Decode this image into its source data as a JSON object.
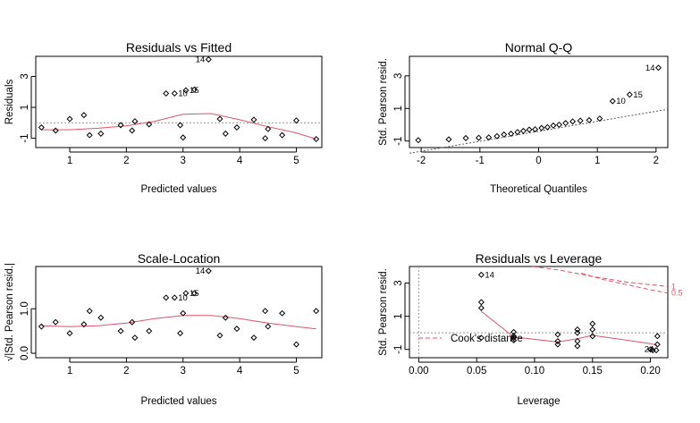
{
  "chart_data": [
    {
      "type": "scatter",
      "title": "Residuals vs Fitted",
      "xlabel": "Predicted values",
      "ylabel": "Residuals",
      "xlim": [
        0.4,
        5.45
      ],
      "ylim": [
        -1.6,
        4.3
      ],
      "xticks": [
        1,
        2,
        3,
        4,
        5
      ],
      "yticks": [
        -1,
        1,
        3
      ],
      "ref": {
        "type": "h",
        "value": 0,
        "style": "dotted",
        "color": "#999999"
      },
      "points": [
        [
          0.5,
          -0.3
        ],
        [
          0.75,
          -0.5
        ],
        [
          1.0,
          0.25
        ],
        [
          1.25,
          0.5
        ],
        [
          1.35,
          -0.8
        ],
        [
          1.55,
          -0.7
        ],
        [
          1.9,
          -0.15
        ],
        [
          2.1,
          -0.5
        ],
        [
          2.15,
          0.1
        ],
        [
          2.4,
          -0.1
        ],
        [
          2.7,
          1.9
        ],
        [
          2.85,
          1.9
        ],
        [
          2.95,
          -0.15
        ],
        [
          3.0,
          -0.95
        ],
        [
          3.05,
          2.1
        ],
        [
          3.2,
          2.15
        ],
        [
          3.45,
          4.1
        ],
        [
          3.65,
          0.25
        ],
        [
          3.75,
          -0.7
        ],
        [
          3.95,
          -0.3
        ],
        [
          4.25,
          0.2
        ],
        [
          4.45,
          -1.0
        ],
        [
          4.5,
          -0.4
        ],
        [
          4.75,
          -0.8
        ],
        [
          5.0,
          0.15
        ],
        [
          5.35,
          -1.05
        ]
      ],
      "smooth": [
        [
          0.5,
          -0.45
        ],
        [
          1.0,
          -0.45
        ],
        [
          1.5,
          -0.35
        ],
        [
          2.0,
          -0.2
        ],
        [
          2.5,
          0.1
        ],
        [
          3.0,
          0.55
        ],
        [
          3.5,
          0.6
        ],
        [
          4.0,
          0.2
        ],
        [
          4.5,
          -0.25
        ],
        [
          5.0,
          -0.65
        ],
        [
          5.35,
          -1.05
        ]
      ],
      "annotations": [
        {
          "x": 3.45,
          "y": 4.1,
          "text": "14",
          "pos": "left"
        },
        {
          "x": 2.85,
          "y": 1.9,
          "text": "10",
          "pos": "right"
        },
        {
          "x": 3.05,
          "y": 2.1,
          "text": "15",
          "pos": "right"
        }
      ]
    },
    {
      "type": "scatter",
      "title": "Normal Q-Q",
      "xlabel": "Theoretical Quantiles",
      "ylabel": "Std. Pearson resid.",
      "xlim": [
        -2.2,
        2.2
      ],
      "ylim": [
        -1.4,
        4.2
      ],
      "xticks": [
        -2,
        -1,
        0,
        1,
        2
      ],
      "yticks": [
        -1,
        1,
        3
      ],
      "ref": {
        "type": "line",
        "x1": -2.2,
        "y1": -1.75,
        "x2": 2.2,
        "y2": 0.95,
        "style": "dotted",
        "color": "#555555"
      },
      "points": [
        [
          -2.05,
          -0.95
        ],
        [
          -1.53,
          -0.9
        ],
        [
          -1.24,
          -0.82
        ],
        [
          -1.02,
          -0.8
        ],
        [
          -0.85,
          -0.78
        ],
        [
          -0.71,
          -0.7
        ],
        [
          -0.59,
          -0.6
        ],
        [
          -0.47,
          -0.55
        ],
        [
          -0.36,
          -0.45
        ],
        [
          -0.26,
          -0.38
        ],
        [
          -0.16,
          -0.3
        ],
        [
          -0.06,
          -0.28
        ],
        [
          0.05,
          -0.2
        ],
        [
          0.15,
          -0.15
        ],
        [
          0.25,
          -0.05
        ],
        [
          0.35,
          0.0
        ],
        [
          0.46,
          0.1
        ],
        [
          0.58,
          0.2
        ],
        [
          0.71,
          0.25
        ],
        [
          0.86,
          0.28
        ],
        [
          1.04,
          0.38
        ],
        [
          1.26,
          1.45
        ],
        [
          1.55,
          1.85
        ],
        [
          2.04,
          3.5
        ]
      ],
      "annotations": [
        {
          "x": 2.04,
          "y": 3.5,
          "text": "14",
          "pos": "left"
        },
        {
          "x": 1.26,
          "y": 1.45,
          "text": "10",
          "pos": "right"
        },
        {
          "x": 1.55,
          "y": 1.85,
          "text": "15",
          "pos": "right"
        }
      ]
    },
    {
      "type": "scatter",
      "title": "Scale-Location",
      "xlabel": "Predicted values",
      "ylabel": "√|Std. Pearson resid.|",
      "xlim": [
        0.4,
        5.45
      ],
      "ylim": [
        -0.1,
        1.95
      ],
      "xticks": [
        1,
        2,
        3,
        4,
        5
      ],
      "yticks": [
        0.0,
        1.0
      ],
      "yticklabels": [
        "0.0",
        "1.0"
      ],
      "points": [
        [
          0.5,
          0.6
        ],
        [
          0.75,
          0.7
        ],
        [
          1.0,
          0.45
        ],
        [
          1.25,
          0.65
        ],
        [
          1.35,
          0.95
        ],
        [
          1.55,
          0.8
        ],
        [
          1.9,
          0.5
        ],
        [
          2.1,
          0.7
        ],
        [
          2.15,
          0.35
        ],
        [
          2.4,
          0.5
        ],
        [
          2.7,
          1.25
        ],
        [
          2.85,
          1.25
        ],
        [
          2.95,
          0.45
        ],
        [
          3.0,
          0.9
        ],
        [
          3.05,
          1.35
        ],
        [
          3.2,
          1.35
        ],
        [
          3.45,
          1.85
        ],
        [
          3.65,
          0.4
        ],
        [
          3.75,
          0.8
        ],
        [
          3.95,
          0.55
        ],
        [
          4.25,
          0.35
        ],
        [
          4.45,
          0.95
        ],
        [
          4.5,
          0.6
        ],
        [
          4.75,
          0.9
        ],
        [
          5.0,
          0.2
        ],
        [
          5.35,
          0.95
        ]
      ],
      "smooth": [
        [
          0.5,
          0.62
        ],
        [
          1.0,
          0.6
        ],
        [
          1.5,
          0.62
        ],
        [
          2.0,
          0.68
        ],
        [
          2.5,
          0.78
        ],
        [
          3.0,
          0.85
        ],
        [
          3.5,
          0.85
        ],
        [
          4.0,
          0.78
        ],
        [
          4.5,
          0.68
        ],
        [
          5.0,
          0.6
        ],
        [
          5.35,
          0.55
        ]
      ],
      "annotations": [
        {
          "x": 3.45,
          "y": 1.85,
          "text": "14",
          "pos": "left"
        },
        {
          "x": 2.85,
          "y": 1.25,
          "text": "10",
          "pos": "right"
        },
        {
          "x": 3.05,
          "y": 1.35,
          "text": "15",
          "pos": "right"
        }
      ]
    },
    {
      "type": "scatter",
      "title": "Residuals vs Leverage",
      "xlabel": "Leverage",
      "ylabel": "Std. Pearson resid.",
      "xlim": [
        -0.008,
        0.215
      ],
      "ylim": [
        -1.5,
        4.0
      ],
      "xticks": [
        0.0,
        0.05,
        0.1,
        0.15,
        0.2
      ],
      "xticklabels": [
        "0.00",
        "0.05",
        "0.10",
        "0.15",
        "0.20"
      ],
      "yticks": [
        -1,
        1,
        3
      ],
      "ref": {
        "type": "h",
        "value": 0,
        "style": "dotted",
        "color": "#999999"
      },
      "vref": {
        "type": "v",
        "value": 0,
        "style": "dotted",
        "color": "#999999"
      },
      "points": [
        [
          0.054,
          3.5
        ],
        [
          0.054,
          1.85
        ],
        [
          0.054,
          1.5
        ],
        [
          0.054,
          -0.3
        ],
        [
          0.082,
          0.05
        ],
        [
          0.082,
          -0.2
        ],
        [
          0.082,
          -0.3
        ],
        [
          0.082,
          -0.45
        ],
        [
          0.12,
          -0.1
        ],
        [
          0.12,
          -0.5
        ],
        [
          0.12,
          -0.7
        ],
        [
          0.137,
          0.2
        ],
        [
          0.137,
          0.0
        ],
        [
          0.137,
          -0.5
        ],
        [
          0.137,
          -0.8
        ],
        [
          0.15,
          0.55
        ],
        [
          0.15,
          0.2
        ],
        [
          0.15,
          -0.2
        ],
        [
          0.2,
          -1.0
        ],
        [
          0.202,
          -1.05
        ],
        [
          0.205,
          -1.05
        ],
        [
          0.206,
          -0.7
        ],
        [
          0.206,
          -0.2
        ]
      ],
      "smooth": [
        [
          0.054,
          1.3
        ],
        [
          0.082,
          -0.25
        ],
        [
          0.12,
          -0.55
        ],
        [
          0.137,
          -0.35
        ],
        [
          0.15,
          -0.15
        ],
        [
          0.2,
          -0.65
        ],
        [
          0.206,
          -0.75
        ]
      ],
      "cook_curves": [
        {
          "label": "1",
          "points": [
            [
              0.098,
              4.0
            ],
            [
              0.12,
              3.8
            ],
            [
              0.15,
              3.4
            ],
            [
              0.18,
              3.05
            ],
            [
              0.215,
              2.8
            ]
          ]
        },
        {
          "label": "0.5",
          "points": [
            [
              0.14,
              3.6
            ],
            [
              0.16,
              3.2
            ],
            [
              0.18,
              2.9
            ],
            [
              0.2,
              2.6
            ],
            [
              0.215,
              2.4
            ]
          ]
        }
      ],
      "legend": {
        "text": "Cook's distance",
        "position": "bottom-left"
      },
      "annotations": [
        {
          "x": 0.054,
          "y": 3.5,
          "text": "14",
          "pos": "right"
        },
        {
          "x": 0.206,
          "y": -1.0,
          "text": "24",
          "pos": "left"
        }
      ]
    }
  ]
}
